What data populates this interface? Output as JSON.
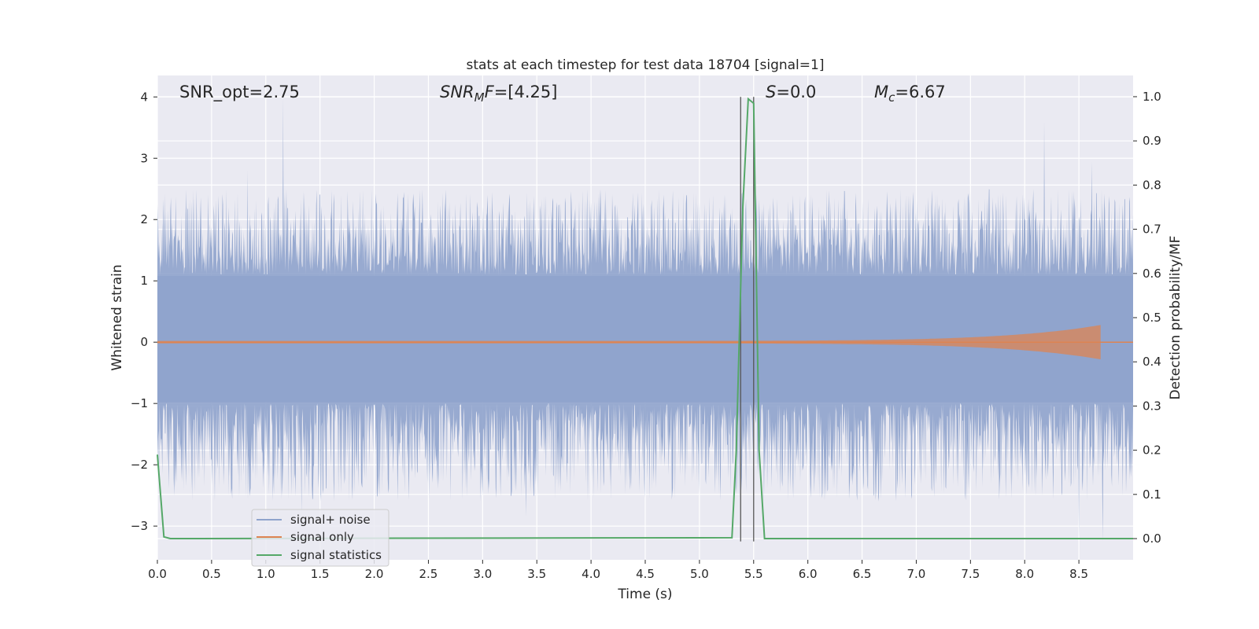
{
  "chart_data": {
    "type": "line",
    "title": "stats at each timestep for test data 18704 [signal=1]",
    "xlabel": "Time (s)",
    "ylabel": "Whitened strain",
    "ylabel_right": "Detection probability/MF",
    "xlim": [
      0.0,
      9.0
    ],
    "ylim": [
      -3.55,
      4.35
    ],
    "ylim_right": [
      -0.048,
      1.048
    ],
    "x_ticks": [
      "0.0",
      "0.5",
      "1.0",
      "1.5",
      "2.0",
      "2.5",
      "3.0",
      "3.5",
      "4.0",
      "4.5",
      "5.0",
      "5.5",
      "6.0",
      "6.5",
      "7.0",
      "7.5",
      "8.0",
      "8.5"
    ],
    "y_ticks": [
      "4",
      "3",
      "2",
      "1",
      "0",
      "−1",
      "−2",
      "−3"
    ],
    "y_ticks_right": [
      "1.0",
      "0.9",
      "0.8",
      "0.7",
      "0.6",
      "0.5",
      "0.4",
      "0.3",
      "0.2",
      "0.1",
      "0.0"
    ],
    "grid": true,
    "legend_position": "lower-left",
    "annotations": {
      "snr_opt": "SNR_opt=2.75",
      "snr_mf_italic": "SNR",
      "snr_mf_sub": "M",
      "snr_mf_italic2": "F",
      "snr_mf_rest": "=[4.25]",
      "s_italic": "S",
      "s_rest": "=0.0",
      "mc_italic": "M",
      "mc_sub": "c",
      "mc_rest": "=6.67"
    },
    "vlines_x": [
      5.38,
      5.5
    ],
    "series": [
      {
        "name": "signal+ noise",
        "color": "#8fa3cc",
        "description_values": {
          "typical_max": 1.8,
          "typical_min": -1.8,
          "peak_max": 4.0,
          "peak_min": -3.25
        },
        "notable_peaks": [
          {
            "x": 1.16,
            "y": 4.0
          },
          {
            "x": 0.83,
            "y": 2.8
          },
          {
            "x": 8.18,
            "y": 3.6
          },
          {
            "x": 8.62,
            "y": 2.95
          },
          {
            "x": 5.35,
            "y": 2.0
          },
          {
            "x": 1.33,
            "y": -2.8
          },
          {
            "x": 3.4,
            "y": -2.85
          },
          {
            "x": 8.5,
            "y": -3.25
          },
          {
            "x": 8.72,
            "y": -3.25
          }
        ]
      },
      {
        "name": "signal only",
        "color": "#dd8452",
        "description_values": {
          "amplitude_start": 0.02,
          "amplitude_peak": 0.28,
          "peak_x": 8.7
        }
      },
      {
        "name": "signal statistics",
        "color": "#55a868",
        "axis": "right",
        "x": [
          0.0,
          0.06,
          0.12,
          5.3,
          5.34,
          5.4,
          5.45,
          5.5,
          5.55,
          5.6,
          9.0
        ],
        "values": [
          0.19,
          0.004,
          0.0,
          0.002,
          0.2,
          0.75,
          0.995,
          0.985,
          0.2,
          0.0,
          0.0
        ]
      }
    ]
  }
}
